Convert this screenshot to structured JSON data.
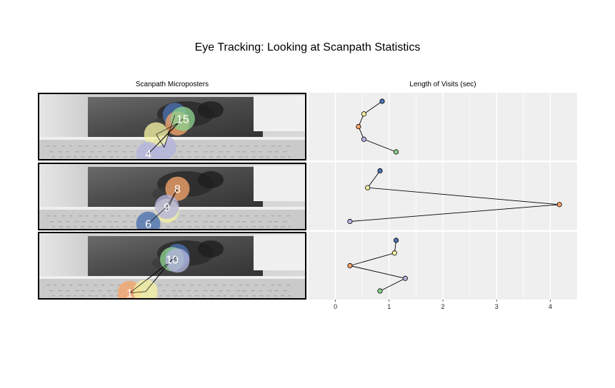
{
  "title": "Eye Tracking: Looking at Scanpath Statistics",
  "left_panel": {
    "title": "Scanpath Microposters"
  },
  "right_panel": {
    "title": "Length of Visits (sec)"
  },
  "fixation_colors": [
    "#4c72b0",
    "#f4f1a3",
    "#f5a46a",
    "#b3b3dd",
    "#8dd08d"
  ],
  "microposters": [
    {
      "fixations": [
        {
          "label": "",
          "color": "#4c72b0",
          "u": 0.51,
          "v": 0.32
        },
        {
          "label": "",
          "color": "#b3b3dd",
          "u": 0.47,
          "v": 0.82
        },
        {
          "label": "",
          "color": "#f4f1a3",
          "u": 0.44,
          "v": 0.62
        },
        {
          "label": "",
          "color": "#f5a46a",
          "u": 0.52,
          "v": 0.45
        },
        {
          "label": "4",
          "color": "#b3b3dd",
          "u": 0.41,
          "v": 0.92
        },
        {
          "label": "15",
          "color": "#8dd08d",
          "u": 0.54,
          "v": 0.38
        }
      ]
    },
    {
      "fixations": [
        {
          "label": "",
          "color": "#f4f1a3",
          "u": 0.48,
          "v": 0.72
        },
        {
          "label": "8",
          "color": "#f5a46a",
          "u": 0.52,
          "v": 0.38
        },
        {
          "label": "9",
          "color": "#b3b3dd",
          "u": 0.48,
          "v": 0.66
        },
        {
          "label": "6",
          "color": "#4c72b0",
          "u": 0.41,
          "v": 0.92
        }
      ]
    },
    {
      "fixations": [
        {
          "label": "",
          "color": "#4c72b0",
          "u": 0.52,
          "v": 0.35
        },
        {
          "label": "1",
          "color": "#f5a46a",
          "u": 0.34,
          "v": 0.92
        },
        {
          "label": "",
          "color": "#f4f1a3",
          "u": 0.4,
          "v": 0.9
        },
        {
          "label": "10",
          "color": "#8dd08d",
          "u": 0.5,
          "v": 0.4
        },
        {
          "label": "",
          "color": "#b3b3dd",
          "u": 0.52,
          "v": 0.42
        }
      ]
    }
  ],
  "chart_data": {
    "type": "line",
    "title": "Length of Visits (sec)",
    "xlabel": "",
    "ylabel": "",
    "xlim": [
      -0.5,
      4.5
    ],
    "xticks": [
      0,
      1,
      2,
      3,
      4
    ],
    "grid": true,
    "facets": [
      {
        "points": [
          {
            "x": 0.87,
            "color": "#4c72b0"
          },
          {
            "x": 0.53,
            "color": "#f4f1a3"
          },
          {
            "x": 0.43,
            "color": "#f5a46a"
          },
          {
            "x": 0.53,
            "color": "#b3b3dd"
          },
          {
            "x": 1.13,
            "color": "#8dd08d"
          }
        ]
      },
      {
        "points": [
          {
            "x": 0.83,
            "color": "#4c72b0"
          },
          {
            "x": 0.6,
            "color": "#f4f1a3"
          },
          {
            "x": 4.17,
            "color": "#f5a46a"
          },
          {
            "x": 0.27,
            "color": "#b3b3dd"
          }
        ]
      },
      {
        "points": [
          {
            "x": 1.13,
            "color": "#4c72b0"
          },
          {
            "x": 1.1,
            "color": "#f4f1a3"
          },
          {
            "x": 0.27,
            "color": "#f5a46a"
          },
          {
            "x": 1.3,
            "color": "#b3b3dd"
          },
          {
            "x": 0.83,
            "color": "#8dd08d"
          }
        ]
      }
    ]
  }
}
